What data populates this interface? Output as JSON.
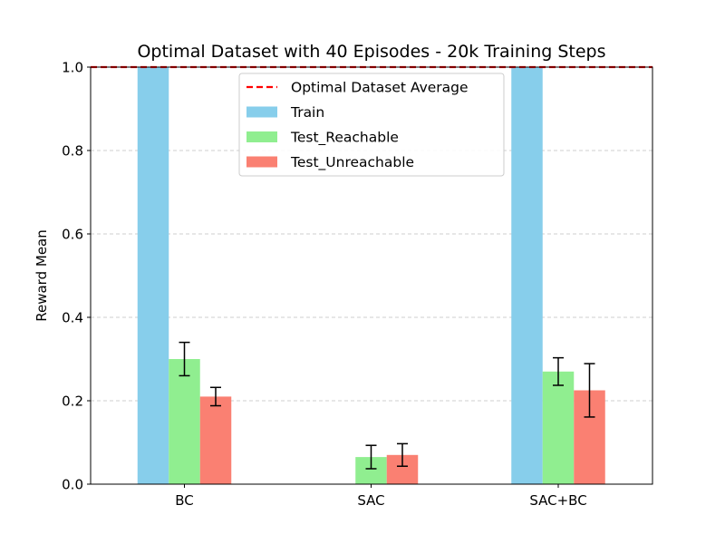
{
  "chart_data": {
    "type": "bar",
    "title": "Optimal Dataset with 40 Episodes - 20k Training Steps",
    "ylabel": "Reward Mean",
    "xlabel": "",
    "categories": [
      "BC",
      "SAC",
      "SAC+BC"
    ],
    "ylim": [
      0,
      1.0
    ],
    "yticks": [
      0.0,
      0.2,
      0.4,
      0.6,
      0.8,
      1.0
    ],
    "ytick_labels": [
      "0.0",
      "0.2",
      "0.4",
      "0.6",
      "0.8",
      "1.0"
    ],
    "grid": "y-dashed",
    "legend_placement": "top-center",
    "series": [
      {
        "name": "Train",
        "color": "#87CEEB",
        "values": [
          1.0,
          0.0,
          1.0
        ],
        "errors": [
          null,
          null,
          null
        ]
      },
      {
        "name": "Test_Reachable",
        "color": "#90EE90",
        "values": [
          0.3,
          0.065,
          0.27
        ],
        "errors": [
          0.04,
          0.028,
          0.033
        ]
      },
      {
        "name": "Test_Unreachable",
        "color": "#FA8072",
        "values": [
          0.21,
          0.07,
          0.225
        ],
        "errors": [
          0.022,
          0.027,
          0.064
        ]
      }
    ],
    "reference_line": {
      "name": "Optimal Dataset Average",
      "value": 1.0,
      "color": "#FF0000",
      "style": "dashed"
    }
  }
}
